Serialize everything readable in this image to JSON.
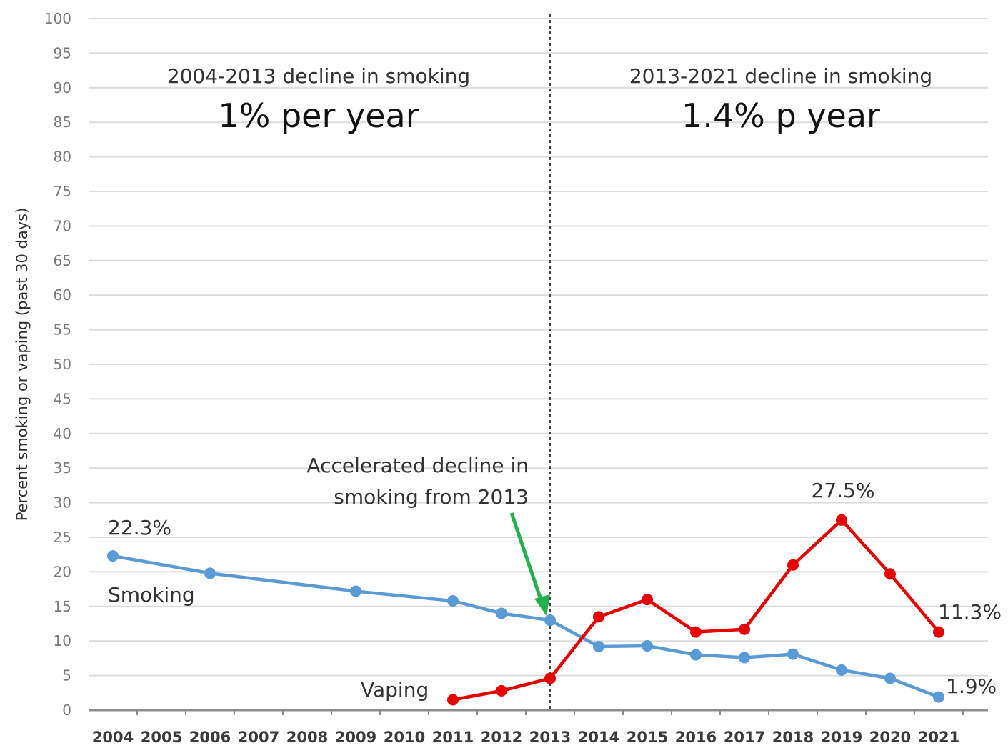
{
  "chart_data": {
    "type": "line",
    "ylabel": "Percent smoking or vaping (past 30 days)",
    "ylim": [
      0,
      100
    ],
    "y_ticks": [
      0,
      5,
      10,
      15,
      20,
      25,
      30,
      35,
      40,
      45,
      50,
      55,
      60,
      65,
      70,
      75,
      80,
      85,
      90,
      95,
      100
    ],
    "categories": [
      "2004",
      "2005",
      "2006",
      "2007",
      "2008",
      "2009",
      "2010",
      "2011",
      "2012",
      "2013",
      "2014",
      "2015",
      "2016",
      "2017",
      "2018",
      "2019",
      "2020",
      "2021"
    ],
    "grid": true,
    "series": [
      {
        "name": "Smoking",
        "color": "#5b9bd5",
        "points": [
          {
            "x": "2004",
            "y": 22.3
          },
          {
            "x": "2006",
            "y": 19.8
          },
          {
            "x": "2009",
            "y": 17.2
          },
          {
            "x": "2011",
            "y": 15.8
          },
          {
            "x": "2012",
            "y": 14.0
          },
          {
            "x": "2013",
            "y": 13.0
          },
          {
            "x": "2014",
            "y": 9.2
          },
          {
            "x": "2015",
            "y": 9.3
          },
          {
            "x": "2016",
            "y": 8.0
          },
          {
            "x": "2017",
            "y": 7.6
          },
          {
            "x": "2018",
            "y": 8.1
          },
          {
            "x": "2019",
            "y": 5.8
          },
          {
            "x": "2020",
            "y": 4.6
          },
          {
            "x": "2021",
            "y": 1.9
          }
        ]
      },
      {
        "name": "Vaping",
        "color": "#e60000",
        "points": [
          {
            "x": "2011",
            "y": 1.5
          },
          {
            "x": "2012",
            "y": 2.8
          },
          {
            "x": "2013",
            "y": 4.6
          },
          {
            "x": "2014",
            "y": 13.5
          },
          {
            "x": "2015",
            "y": 16.0
          },
          {
            "x": "2016",
            "y": 11.3
          },
          {
            "x": "2017",
            "y": 11.7
          },
          {
            "x": "2018",
            "y": 21.0
          },
          {
            "x": "2019",
            "y": 27.5
          },
          {
            "x": "2020",
            "y": 19.7
          },
          {
            "x": "2021",
            "y": 11.3
          }
        ]
      }
    ],
    "divider_at": "2013",
    "annotations": {
      "left_heading": "2004-2013 decline in smoking",
      "left_rate": "1% per year",
      "right_heading": "2013-2021 decline in smoking",
      "right_rate": "1.4% p year",
      "accelerated_line1": "Accelerated decline in",
      "accelerated_line2": "smoking from 2013",
      "smoking_start": "22.3%",
      "smoking_end": "1.9%",
      "vaping_peak": "27.5%",
      "vaping_end": "11.3%"
    },
    "arrow_color": "#22b14c"
  }
}
